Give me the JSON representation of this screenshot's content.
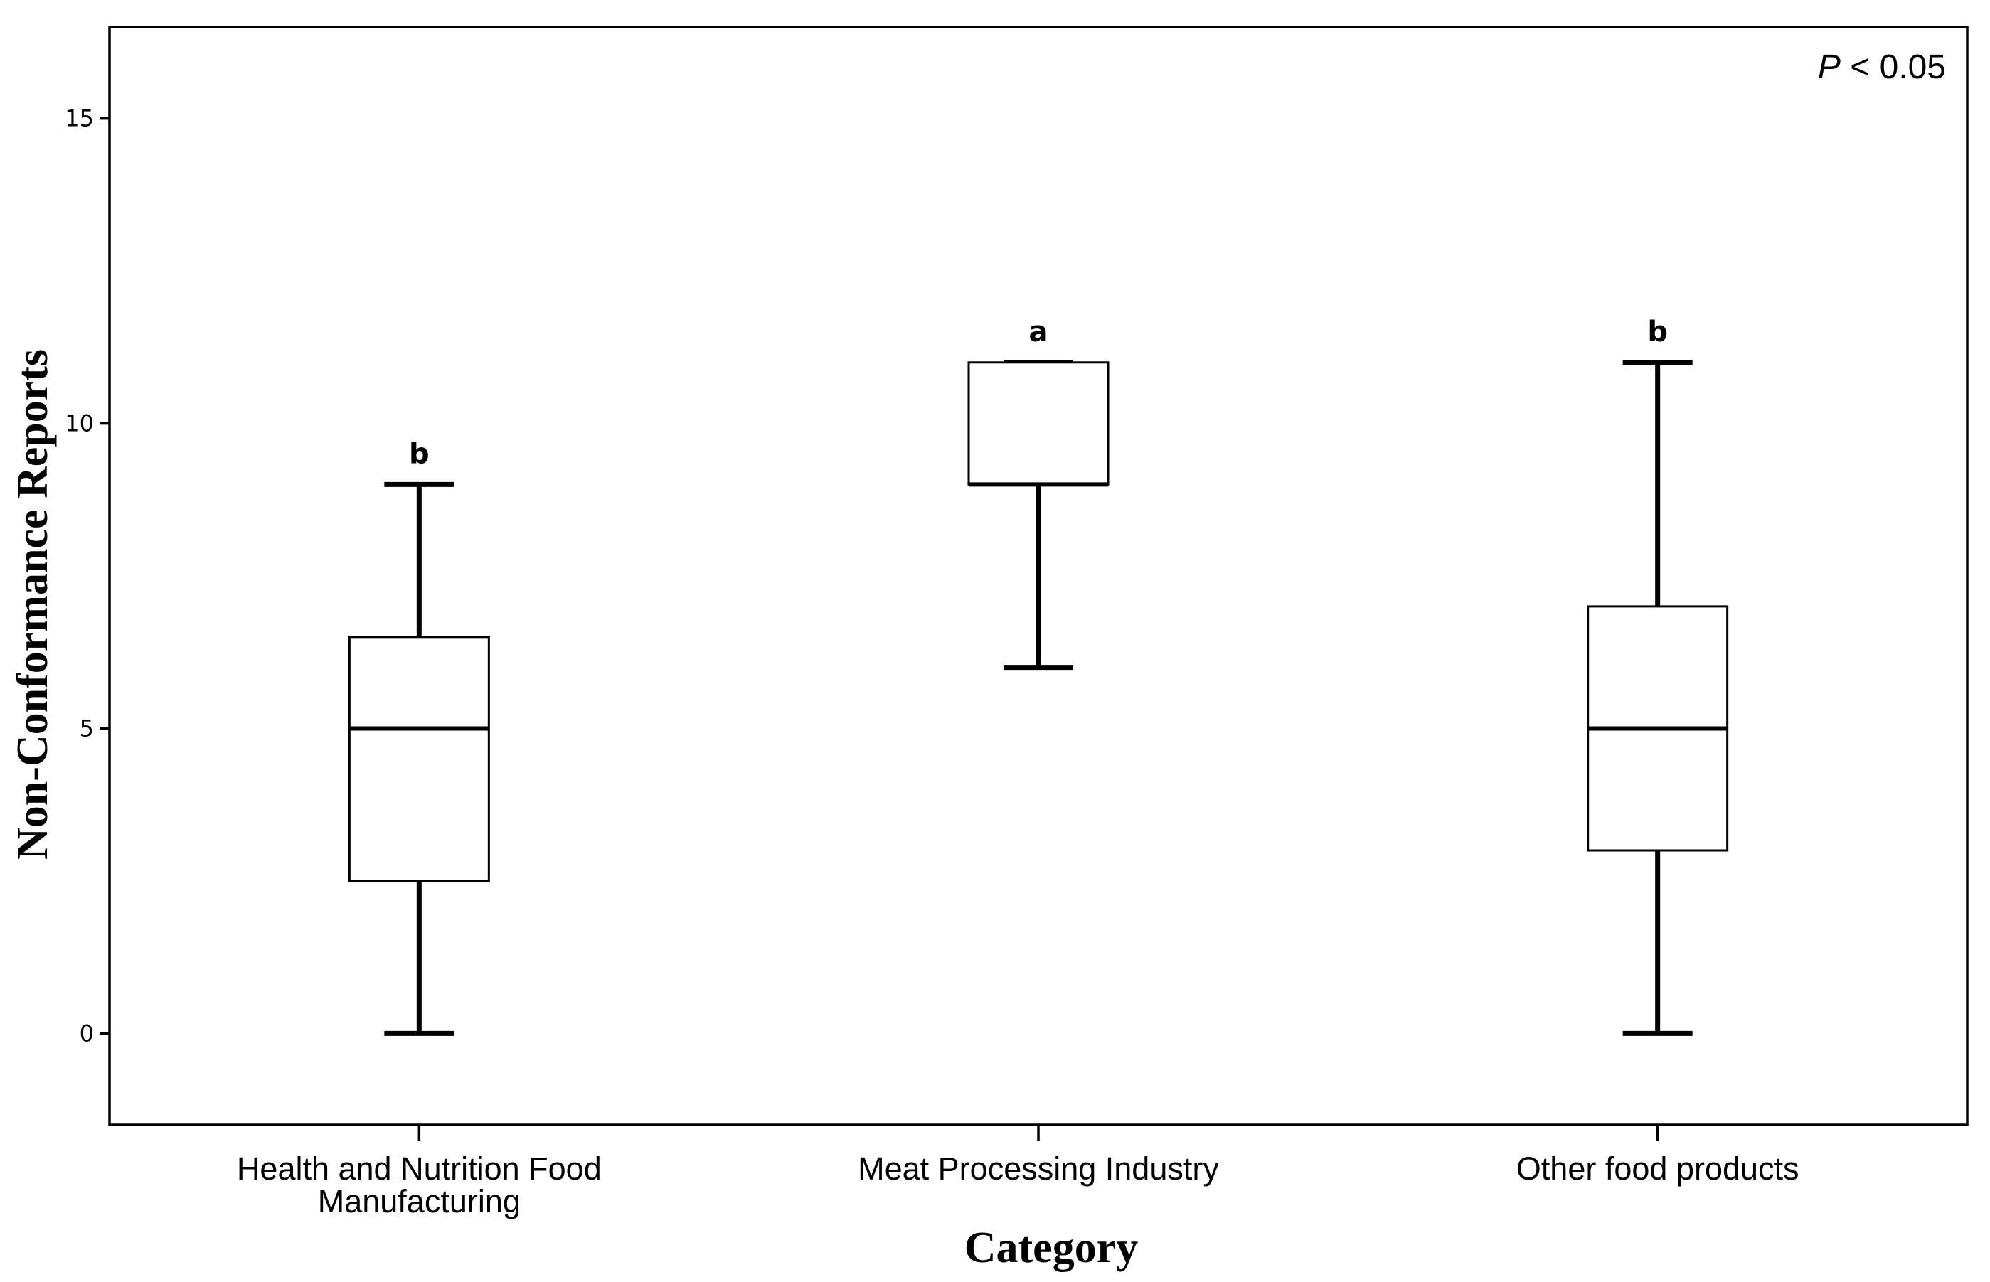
{
  "chart_data": {
    "type": "box",
    "title": "",
    "xlabel": "Category",
    "ylabel": "Non-Conformance Reports",
    "ylim": [
      -1.5,
      16.5
    ],
    "yticks": [
      0,
      5,
      10,
      15
    ],
    "grid": false,
    "legend": "none",
    "annotation": {
      "p_symbol": "P",
      "p_rest": " < 0.05",
      "placement": "top-right"
    },
    "categories": [
      {
        "label_lines": [
          "Health and Nutrition Food",
          "Manufacturing"
        ],
        "min": 0,
        "q1": 2.5,
        "median": 5,
        "q3": 6.5,
        "max": 9,
        "group": "b"
      },
      {
        "label_lines": [
          "Meat Processing Industry"
        ],
        "min": 6,
        "q1": 9,
        "median": 9,
        "q3": 11,
        "max": 11,
        "group": "a"
      },
      {
        "label_lines": [
          "Other food products"
        ],
        "min": 0,
        "q1": 3,
        "median": 5,
        "q3": 7,
        "max": 11,
        "group": "b"
      }
    ]
  }
}
